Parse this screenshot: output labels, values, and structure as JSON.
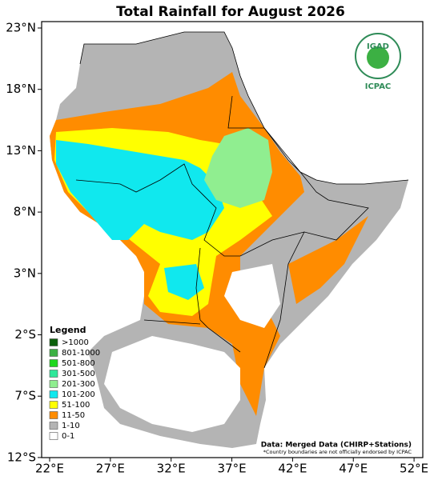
{
  "map": {
    "title": "Total Rainfall for August 2026",
    "y_ticks": [
      {
        "value": 23,
        "label": "23°N"
      },
      {
        "value": 18,
        "label": "18°N"
      },
      {
        "value": 13,
        "label": "13°N"
      },
      {
        "value": 8,
        "label": "8°N"
      },
      {
        "value": 3,
        "label": "3°N"
      },
      {
        "value": -2,
        "label": "2°S"
      },
      {
        "value": -7,
        "label": "7°S"
      },
      {
        "value": -12,
        "label": "12°S"
      }
    ],
    "x_ticks": [
      {
        "value": 22,
        "label": "22°E"
      },
      {
        "value": 27,
        "label": "27°E"
      },
      {
        "value": 32,
        "label": "32°E"
      },
      {
        "value": 37,
        "label": "37°E"
      },
      {
        "value": 42,
        "label": "42°E"
      },
      {
        "value": 47,
        "label": "47°E"
      },
      {
        "value": 52,
        "label": "52°E"
      }
    ],
    "legend": {
      "title": "Legend",
      "items": [
        {
          "label": ">1000",
          "color": "#0a5e0a"
        },
        {
          "label": "801-1000",
          "color": "#3cb043"
        },
        {
          "label": "501-800",
          "color": "#1ed81e"
        },
        {
          "label": "301-500",
          "color": "#2ee89a"
        },
        {
          "label": "201-300",
          "color": "#90ee90"
        },
        {
          "label": "101-200",
          "color": "#10e8ee"
        },
        {
          "label": "51-100",
          "color": "#ffff00"
        },
        {
          "label": "11-50",
          "color": "#ff8c00"
        },
        {
          "label": "1-10",
          "color": "#b4b4b4"
        },
        {
          "label": "0-1",
          "color": "#ffffff"
        }
      ]
    },
    "source": "Data: Merged Data (CHIRP+Stations)",
    "disclaimer": "*Country boundaries are not officially endorsed by ICPAC",
    "logo": {
      "name": "IGAD",
      "org": "ICPAC"
    }
  }
}
